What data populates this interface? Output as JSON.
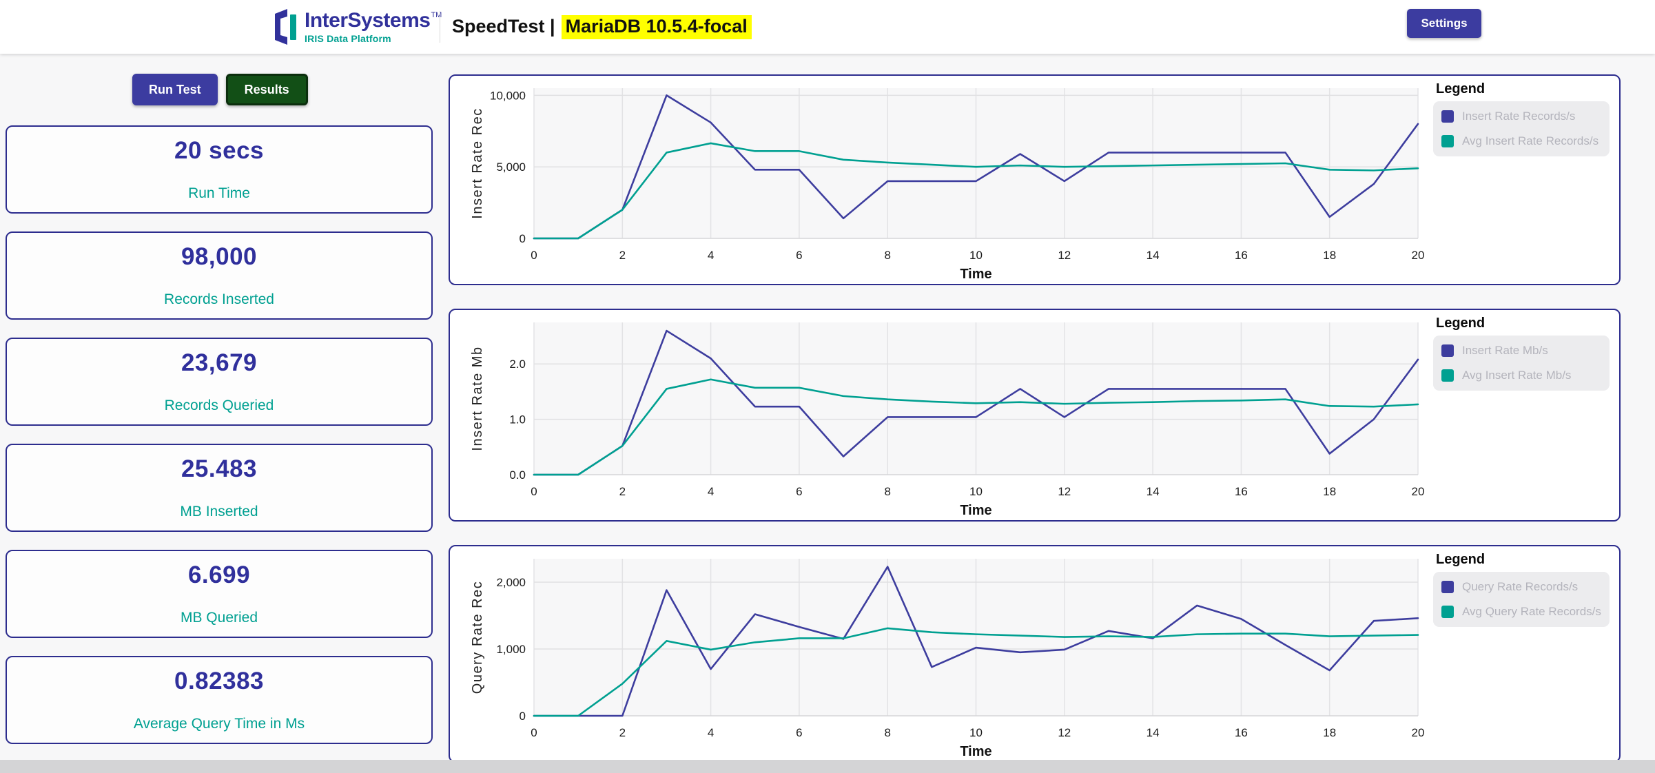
{
  "header": {
    "logo": {
      "brand": "InterSystems",
      "tm": "TM",
      "subtitle": "IRIS Data Platform"
    },
    "title_prefix": "SpeedTest |",
    "title_highlight": "MariaDB 10.5.4-focal",
    "settings_label": "Settings"
  },
  "actions": {
    "run_test_label": "Run Test",
    "results_label": "Results"
  },
  "stats": [
    {
      "value": "20 secs",
      "label": "Run Time"
    },
    {
      "value": "98,000",
      "label": "Records Inserted"
    },
    {
      "value": "23,679",
      "label": "Records Queried"
    },
    {
      "value": "25.483",
      "label": "MB Inserted"
    },
    {
      "value": "6.699",
      "label": "MB Queried"
    },
    {
      "value": "0.82383",
      "label": "Average Query Time in Ms"
    }
  ],
  "colors": {
    "accent_indigo": "#3c3ca0",
    "accent_teal": "#00a091",
    "results_green": "#124f16",
    "card_border": "#2d2d8e",
    "highlight_yellow": "#ffff00",
    "legend_muted_text": "#b4b4bc"
  },
  "chart_data": [
    {
      "type": "line",
      "title": "",
      "xlabel": "Time",
      "ylabel": "Insert Rate Rec",
      "legend_title": "Legend",
      "legend_position": "top-right",
      "grid": true,
      "xlim": [
        0,
        20
      ],
      "ylim": [
        0,
        10500
      ],
      "x": [
        0,
        1,
        2,
        3,
        4,
        5,
        6,
        7,
        8,
        9,
        10,
        11,
        12,
        13,
        14,
        15,
        16,
        17,
        18,
        19,
        20
      ],
      "xticks": [
        {
          "v": 0,
          "label": "0"
        },
        {
          "v": 2,
          "label": "2"
        },
        {
          "v": 4,
          "label": "4"
        },
        {
          "v": 6,
          "label": "6"
        },
        {
          "v": 8,
          "label": "8"
        },
        {
          "v": 10,
          "label": "10"
        },
        {
          "v": 12,
          "label": "12"
        },
        {
          "v": 14,
          "label": "14"
        },
        {
          "v": 16,
          "label": "16"
        },
        {
          "v": 18,
          "label": "18"
        },
        {
          "v": 20,
          "label": "20"
        }
      ],
      "yticks": [
        {
          "v": 0,
          "label": "0"
        },
        {
          "v": 5000,
          "label": "5,000"
        },
        {
          "v": 10000,
          "label": "10,000"
        }
      ],
      "series": [
        {
          "name": "Insert Rate Records/s",
          "color": "#3d3d9e",
          "values": [
            0,
            0,
            2000,
            10000,
            8100,
            4800,
            4800,
            1400,
            4000,
            4000,
            4000,
            5900,
            4000,
            6000,
            6000,
            6000,
            6000,
            6000,
            1500,
            3800,
            8000
          ]
        },
        {
          "name": "Avg Insert Rate Records/s",
          "color": "#00a091",
          "values": [
            0,
            0,
            2000,
            6000,
            6650,
            6100,
            6100,
            5500,
            5300,
            5150,
            5000,
            5100,
            5000,
            5050,
            5100,
            5150,
            5200,
            5250,
            4800,
            4750,
            4900
          ]
        }
      ]
    },
    {
      "type": "line",
      "title": "",
      "xlabel": "Time",
      "ylabel": "Insert Rate Mb",
      "legend_title": "Legend",
      "legend_position": "top-right",
      "grid": true,
      "xlim": [
        0,
        20
      ],
      "ylim": [
        0,
        2.75
      ],
      "x": [
        0,
        1,
        2,
        3,
        4,
        5,
        6,
        7,
        8,
        9,
        10,
        11,
        12,
        13,
        14,
        15,
        16,
        17,
        18,
        19,
        20
      ],
      "xticks": [
        {
          "v": 0,
          "label": "0"
        },
        {
          "v": 2,
          "label": "2"
        },
        {
          "v": 4,
          "label": "4"
        },
        {
          "v": 6,
          "label": "6"
        },
        {
          "v": 8,
          "label": "8"
        },
        {
          "v": 10,
          "label": "10"
        },
        {
          "v": 12,
          "label": "12"
        },
        {
          "v": 14,
          "label": "14"
        },
        {
          "v": 16,
          "label": "16"
        },
        {
          "v": 18,
          "label": "18"
        },
        {
          "v": 20,
          "label": "20"
        }
      ],
      "yticks": [
        {
          "v": 0,
          "label": "0.0"
        },
        {
          "v": 1,
          "label": "1.0"
        },
        {
          "v": 2,
          "label": "2.0"
        }
      ],
      "series": [
        {
          "name": "Insert Rate Mb/s",
          "color": "#3d3d9e",
          "values": [
            0,
            0,
            0.52,
            2.6,
            2.1,
            1.23,
            1.23,
            0.33,
            1.04,
            1.04,
            1.04,
            1.55,
            1.04,
            1.55,
            1.55,
            1.55,
            1.55,
            1.55,
            0.38,
            1.0,
            2.08
          ]
        },
        {
          "name": "Avg Insert Rate Mb/s",
          "color": "#00a091",
          "values": [
            0,
            0,
            0.52,
            1.55,
            1.72,
            1.57,
            1.57,
            1.42,
            1.36,
            1.32,
            1.29,
            1.31,
            1.28,
            1.3,
            1.31,
            1.33,
            1.34,
            1.36,
            1.24,
            1.23,
            1.27
          ]
        }
      ]
    },
    {
      "type": "line",
      "title": "",
      "xlabel": "Time",
      "ylabel": "Query Rate Rec",
      "legend_title": "Legend",
      "legend_position": "top-right",
      "grid": true,
      "xlim": [
        0,
        20
      ],
      "ylim": [
        0,
        2350
      ],
      "x": [
        0,
        1,
        2,
        3,
        4,
        5,
        6,
        7,
        8,
        9,
        10,
        11,
        12,
        13,
        14,
        15,
        16,
        17,
        18,
        19,
        20
      ],
      "xticks": [
        {
          "v": 0,
          "label": "0"
        },
        {
          "v": 2,
          "label": "2"
        },
        {
          "v": 4,
          "label": "4"
        },
        {
          "v": 6,
          "label": "6"
        },
        {
          "v": 8,
          "label": "8"
        },
        {
          "v": 10,
          "label": "10"
        },
        {
          "v": 12,
          "label": "12"
        },
        {
          "v": 14,
          "label": "14"
        },
        {
          "v": 16,
          "label": "16"
        },
        {
          "v": 18,
          "label": "18"
        },
        {
          "v": 20,
          "label": "20"
        }
      ],
      "yticks": [
        {
          "v": 0,
          "label": "0"
        },
        {
          "v": 1000,
          "label": "1,000"
        },
        {
          "v": 2000,
          "label": "2,000"
        }
      ],
      "series": [
        {
          "name": "Query Rate Records/s",
          "color": "#3d3d9e",
          "values": [
            0,
            0,
            0,
            1880,
            700,
            1520,
            1330,
            1150,
            2230,
            730,
            1020,
            950,
            990,
            1270,
            1160,
            1650,
            1450,
            1060,
            680,
            1420,
            1460
          ]
        },
        {
          "name": "Avg Query Rate Records/s",
          "color": "#00a091",
          "values": [
            0,
            0,
            480,
            1120,
            990,
            1100,
            1160,
            1160,
            1310,
            1250,
            1220,
            1200,
            1180,
            1190,
            1180,
            1220,
            1230,
            1230,
            1190,
            1200,
            1210
          ]
        }
      ]
    }
  ]
}
